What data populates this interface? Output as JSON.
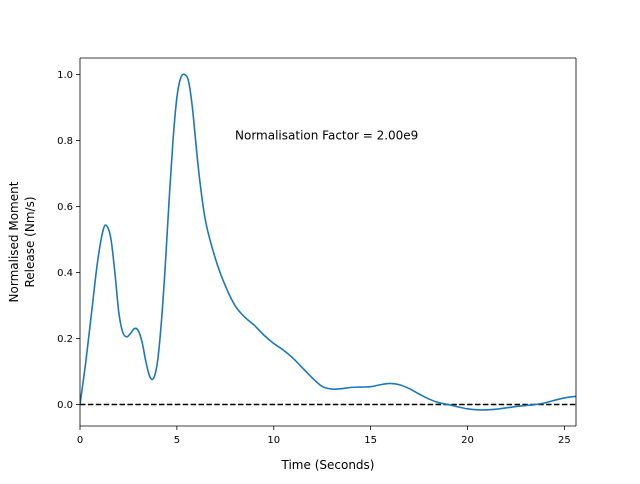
{
  "chart_data": {
    "type": "line",
    "title": "",
    "xlabel": "Time (Seconds)",
    "ylabel_lines": [
      "Normalised Moment",
      "Release (Nm/s)"
    ],
    "xlim": [
      0,
      25.6
    ],
    "ylim": [
      -0.065,
      1.05
    ],
    "x_ticks": [
      0,
      5,
      10,
      15,
      20,
      25
    ],
    "x_tick_labels": [
      "0",
      "5",
      "10",
      "15",
      "20",
      "25"
    ],
    "y_ticks": [
      0.0,
      0.2,
      0.4,
      0.6,
      0.8,
      1.0
    ],
    "y_tick_labels": [
      "0.0",
      "0.2",
      "0.4",
      "0.6",
      "0.8",
      "1.0"
    ],
    "grid": false,
    "annotation": "Normalisation Factor = 2.00e9",
    "reference_line": {
      "y": 0.0,
      "style": "dashed",
      "color": "#000000"
    },
    "series": [
      {
        "color": "#1f77b4",
        "x": [
          0,
          0.3,
          0.6,
          0.9,
          1.2,
          1.4,
          1.6,
          1.8,
          2.0,
          2.2,
          2.4,
          2.6,
          2.8,
          3.0,
          3.2,
          3.4,
          3.6,
          3.8,
          4.0,
          4.2,
          4.4,
          4.6,
          4.8,
          5.0,
          5.2,
          5.4,
          5.6,
          5.8,
          6.0,
          6.2,
          6.5,
          7.0,
          7.5,
          8.0,
          8.5,
          9.0,
          9.5,
          10.0,
          10.5,
          11.0,
          11.5,
          12.0,
          12.5,
          13.0,
          13.5,
          14.0,
          14.5,
          15.0,
          15.5,
          16.0,
          16.5,
          17.0,
          17.5,
          18.0,
          18.5,
          19.0,
          19.5,
          20.0,
          20.5,
          21.0,
          21.5,
          22.0,
          22.5,
          23.0,
          23.5,
          24.0,
          24.5,
          25.0,
          25.6
        ],
        "y": [
          0.0,
          0.13,
          0.28,
          0.43,
          0.53,
          0.54,
          0.5,
          0.4,
          0.28,
          0.22,
          0.205,
          0.215,
          0.23,
          0.225,
          0.19,
          0.13,
          0.085,
          0.08,
          0.13,
          0.25,
          0.42,
          0.62,
          0.8,
          0.93,
          0.99,
          1.0,
          0.98,
          0.9,
          0.78,
          0.67,
          0.55,
          0.44,
          0.36,
          0.3,
          0.265,
          0.24,
          0.21,
          0.185,
          0.165,
          0.14,
          0.11,
          0.08,
          0.055,
          0.047,
          0.048,
          0.052,
          0.053,
          0.054,
          0.06,
          0.064,
          0.06,
          0.048,
          0.032,
          0.017,
          0.006,
          0.0,
          -0.007,
          -0.013,
          -0.016,
          -0.016,
          -0.014,
          -0.01,
          -0.006,
          -0.003,
          0.0,
          0.005,
          0.013,
          0.02,
          0.025
        ]
      }
    ]
  }
}
